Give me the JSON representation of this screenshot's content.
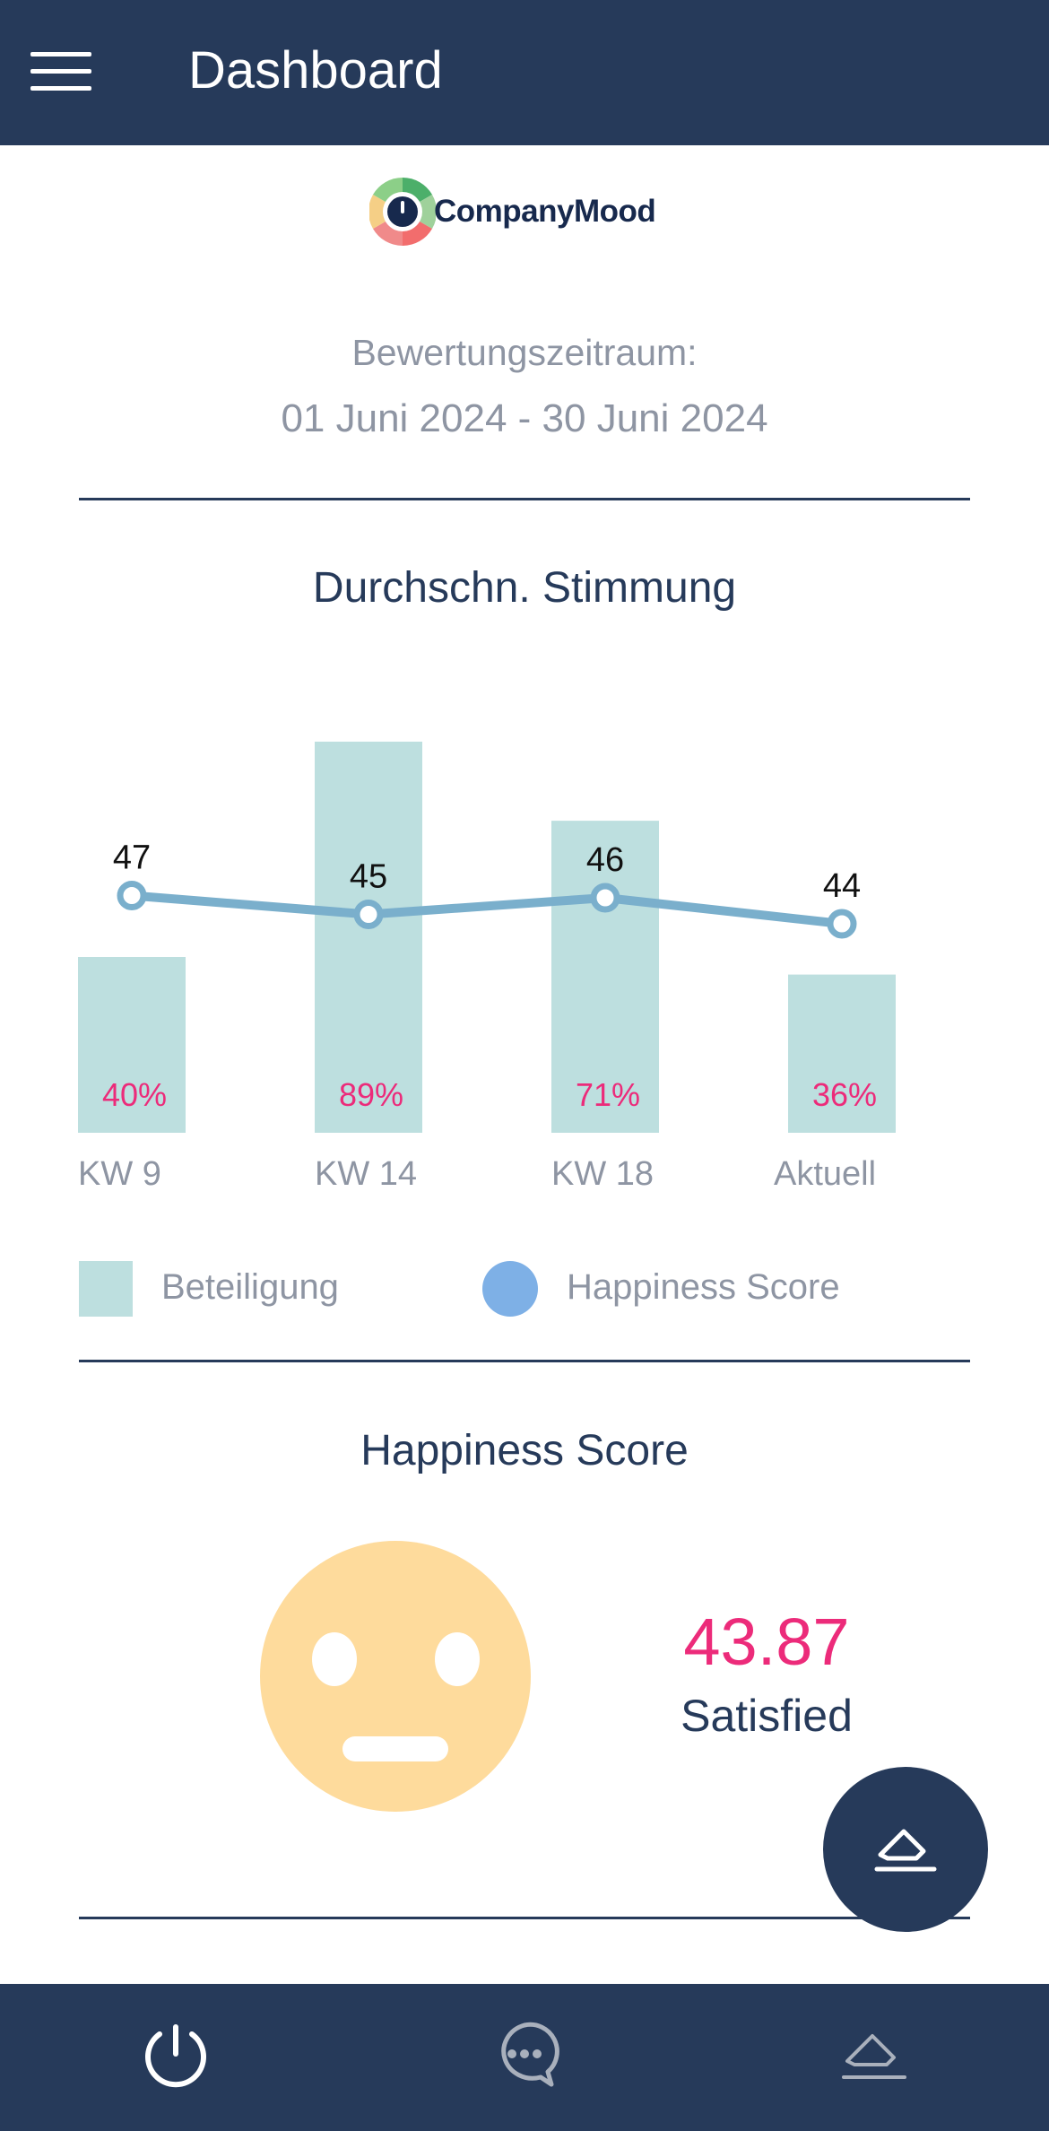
{
  "header": {
    "title": "Dashboard",
    "menu_icon": "hamburger-menu-icon"
  },
  "logo": {
    "text": "CompanyMood",
    "icon": "mood-gauge-logo-icon"
  },
  "period": {
    "label": "Bewertungszeitraum:",
    "range": "01 Juni 2024 - 30 Juni 2024"
  },
  "mood_section": {
    "title": "Durchschn. Stimmung"
  },
  "chart_data": {
    "type": "bar",
    "title": "Durchschn. Stimmung",
    "categories": [
      "KW 9",
      "KW 14",
      "KW 18",
      "Aktuell"
    ],
    "series": [
      {
        "name": "Beteiligung",
        "type": "bar",
        "values": [
          40,
          89,
          71,
          36
        ],
        "labels": [
          "40%",
          "89%",
          "71%",
          "36%"
        ],
        "color": "#bddfdf",
        "label_color": "#ec2b7a"
      },
      {
        "name": "Happiness Score",
        "type": "line",
        "values": [
          47,
          45,
          46,
          44
        ],
        "labels": [
          "47",
          "45",
          "46",
          "44"
        ],
        "color": "#7aafcc"
      }
    ],
    "legend": [
      "Beteiligung",
      "Happiness Score"
    ],
    "legend_position": "bottom",
    "grid": false
  },
  "legend": {
    "bar_label": "Beteiligung",
    "line_label": "Happiness Score",
    "line_swatch_color": "#7eb0e6"
  },
  "happiness": {
    "title": "Happiness Score",
    "value": "43.87",
    "status": "Satisfied",
    "face_icon": "neutral-face-icon",
    "value_color": "#ec2b7a"
  },
  "fab": {
    "icon": "eraser-icon"
  },
  "bottom_nav": {
    "items": [
      {
        "icon": "power-dashboard-icon"
      },
      {
        "icon": "chat-bubble-icon"
      },
      {
        "icon": "eraser-icon"
      }
    ]
  },
  "colors": {
    "primary": "#263a5a",
    "accent": "#ec2b7a",
    "bar": "#bddfdf",
    "muted_text": "#8e95a3"
  }
}
